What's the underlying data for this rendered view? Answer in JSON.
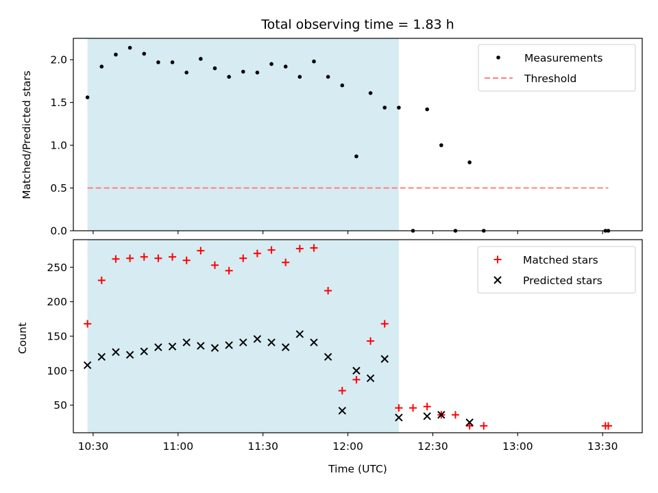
{
  "chart_data": [
    {
      "type": "scatter",
      "title": "Total observing time = 1.83 h",
      "ylabel": "Matched/Predicted stars",
      "xlim": [
        "10:23",
        "13:44"
      ],
      "ylim": [
        0,
        2.25
      ],
      "y_ticks": [
        0.0,
        0.5,
        1.0,
        1.5,
        2.0
      ],
      "y_tick_labels": [
        "0.0",
        "0.5",
        "1.0",
        "1.5",
        "2.0"
      ],
      "x_ticks": [
        "10:30",
        "11:00",
        "11:30",
        "12:00",
        "12:30",
        "13:00",
        "13:30"
      ],
      "shaded_span": [
        "10:28",
        "12:18"
      ],
      "shaded_color": "#add8e6",
      "legend_position": "upper right",
      "series": [
        {
          "name": "Measurements",
          "marker": "dot",
          "color": "#000000",
          "x": [
            "10:28",
            "10:33",
            "10:38",
            "10:43",
            "10:48",
            "10:53",
            "10:58",
            "11:03",
            "11:08",
            "11:13",
            "11:18",
            "11:23",
            "11:28",
            "11:33",
            "11:38",
            "11:43",
            "11:48",
            "11:53",
            "11:58",
            "12:03",
            "12:08",
            "12:13",
            "12:18",
            "12:23",
            "12:28",
            "12:33",
            "12:38",
            "12:43",
            "12:48",
            "13:31",
            "13:32"
          ],
          "y": [
            1.56,
            1.92,
            2.06,
            2.14,
            2.07,
            1.97,
            1.97,
            1.85,
            2.01,
            1.9,
            1.8,
            1.86,
            1.85,
            1.95,
            1.92,
            1.8,
            1.98,
            1.8,
            1.7,
            0.87,
            1.61,
            1.44,
            1.44,
            0.0,
            1.42,
            1.0,
            0.0,
            0.8,
            0.0,
            0.0,
            0.0
          ]
        },
        {
          "name": "Threshold",
          "style": "dashed",
          "color": "#ff7f7f",
          "x": [
            "10:28",
            "13:32"
          ],
          "y": [
            0.5,
            0.5
          ]
        }
      ]
    },
    {
      "type": "scatter",
      "ylabel": "Count",
      "xlabel": "Time (UTC)",
      "xlim": [
        "10:23",
        "13:44"
      ],
      "ylim": [
        10,
        290
      ],
      "y_ticks": [
        50,
        100,
        150,
        200,
        250
      ],
      "y_tick_labels": [
        "50",
        "100",
        "150",
        "200",
        "250"
      ],
      "x_ticks": [
        "10:30",
        "11:00",
        "11:30",
        "12:00",
        "12:30",
        "13:00",
        "13:30"
      ],
      "x_tick_labels": [
        "10:30",
        "11:00",
        "11:30",
        "12:00",
        "12:30",
        "13:00",
        "13:30"
      ],
      "shaded_span": [
        "10:28",
        "12:18"
      ],
      "shaded_color": "#add8e6",
      "legend_position": "upper right",
      "series": [
        {
          "name": "Matched stars",
          "marker": "plus",
          "color": "#ff0000",
          "x": [
            "10:28",
            "10:33",
            "10:38",
            "10:43",
            "10:48",
            "10:53",
            "10:58",
            "11:03",
            "11:08",
            "11:13",
            "11:18",
            "11:23",
            "11:28",
            "11:33",
            "11:38",
            "11:43",
            "11:48",
            "11:53",
            "11:58",
            "12:03",
            "12:08",
            "12:13",
            "12:18",
            "12:23",
            "12:28",
            "12:33",
            "12:38",
            "12:43",
            "12:48",
            "13:31",
            "13:32"
          ],
          "y": [
            168,
            231,
            262,
            263,
            265,
            263,
            265,
            260,
            274,
            253,
            245,
            263,
            270,
            275,
            257,
            277,
            278,
            216,
            71,
            87,
            143,
            168,
            46,
            46,
            48,
            36,
            36,
            20,
            20,
            20,
            20
          ]
        },
        {
          "name": "Predicted stars",
          "marker": "x",
          "color": "#000000",
          "x": [
            "10:28",
            "10:33",
            "10:38",
            "10:43",
            "10:48",
            "10:53",
            "10:58",
            "11:03",
            "11:08",
            "11:13",
            "11:18",
            "11:23",
            "11:28",
            "11:33",
            "11:38",
            "11:43",
            "11:48",
            "11:53",
            "11:58",
            "12:03",
            "12:08",
            "12:13",
            "12:18",
            "12:28",
            "12:33",
            "12:43"
          ],
          "y": [
            108,
            120,
            127,
            123,
            128,
            134,
            135,
            141,
            136,
            133,
            137,
            141,
            146,
            141,
            134,
            153,
            141,
            120,
            42,
            100,
            89,
            117,
            32,
            34,
            36,
            25
          ]
        }
      ]
    }
  ]
}
